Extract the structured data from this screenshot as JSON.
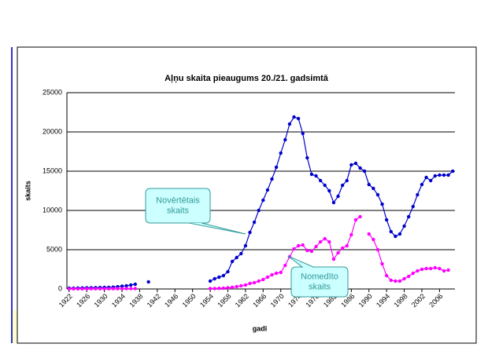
{
  "chart_data": {
    "type": "line",
    "title": "Aļņu skaita pieaugums 20./21. gadsimtā",
    "xlabel": "gadi",
    "ylabel": "skaits",
    "x": [
      1922,
      1923,
      1924,
      1925,
      1926,
      1927,
      1928,
      1929,
      1930,
      1931,
      1932,
      1933,
      1934,
      1935,
      1936,
      1937,
      1938,
      1939,
      1940,
      1941,
      1942,
      1943,
      1944,
      1945,
      1946,
      1947,
      1948,
      1949,
      1950,
      1951,
      1952,
      1953,
      1954,
      1955,
      1956,
      1957,
      1958,
      1959,
      1960,
      1961,
      1962,
      1963,
      1964,
      1965,
      1966,
      1967,
      1968,
      1969,
      1970,
      1971,
      1972,
      1973,
      1974,
      1975,
      1976,
      1977,
      1978,
      1979,
      1980,
      1981,
      1982,
      1983,
      1984,
      1985,
      1986,
      1987,
      1988,
      1989,
      1990,
      1991,
      1992,
      1993,
      1994,
      1995,
      1996,
      1997,
      1998,
      1999,
      2000,
      2001,
      2002,
      2003,
      2004,
      2005,
      2006,
      2007,
      2008,
      2009
    ],
    "series": [
      {
        "name": "Novērtētais skaits",
        "color": "#0000cc",
        "values": [
          100,
          100,
          120,
          130,
          150,
          150,
          170,
          180,
          200,
          200,
          230,
          280,
          350,
          400,
          500,
          600,
          null,
          null,
          900,
          null,
          null,
          null,
          null,
          null,
          null,
          null,
          null,
          null,
          null,
          null,
          null,
          null,
          1000,
          1300,
          1500,
          1700,
          2200,
          3500,
          4000,
          4500,
          5500,
          7200,
          8500,
          10000,
          11300,
          12600,
          14000,
          15500,
          17300,
          19000,
          21000,
          21900,
          21700,
          19800,
          16700,
          14600,
          14400,
          13800,
          13200,
          12500,
          11000,
          11800,
          13200,
          13800,
          15800,
          16000,
          15400,
          15000,
          13300,
          12800,
          12000,
          10800,
          8800,
          7300,
          6700,
          7000,
          8000,
          9200,
          10500,
          12000,
          13300,
          14200,
          13800,
          14400,
          14500,
          14500,
          14500,
          15000
        ]
      },
      {
        "name": "Nomedīto skaits",
        "color": "#ff00ff",
        "values": [
          20,
          20,
          20,
          20,
          30,
          30,
          30,
          30,
          30,
          30,
          40,
          40,
          40,
          50,
          50,
          50,
          null,
          null,
          null,
          null,
          null,
          null,
          null,
          null,
          null,
          null,
          null,
          null,
          null,
          null,
          null,
          null,
          50,
          60,
          80,
          100,
          150,
          200,
          300,
          400,
          500,
          700,
          800,
          1000,
          1200,
          1500,
          1800,
          2000,
          2100,
          3000,
          4100,
          5100,
          5500,
          5600,
          4900,
          4800,
          5400,
          6000,
          6400,
          6000,
          3800,
          4600,
          5200,
          5500,
          6900,
          8800,
          9200,
          null,
          7000,
          6300,
          5000,
          3200,
          1700,
          1100,
          1000,
          1000,
          1300,
          1600,
          2000,
          2300,
          2500,
          2600,
          2600,
          2700,
          2600,
          2300,
          2400,
          null
        ]
      }
    ],
    "annotations": [
      [
        "Novērtētais",
        "skaits"
      ],
      [
        "Nomedīto",
        "skaits"
      ]
    ],
    "xlim": [
      1921.5,
      2009.5
    ],
    "xticks": [
      1922,
      1926,
      1930,
      1934,
      1938,
      1942,
      1946,
      1950,
      1954,
      1958,
      1962,
      1966,
      1970,
      1974,
      1978,
      1982,
      1986,
      1990,
      1994,
      1998,
      2002,
      2006
    ],
    "ylim": [
      0,
      25000
    ],
    "yticks": [
      0,
      5000,
      10000,
      15000,
      20000,
      25000
    ],
    "grid": true
  }
}
